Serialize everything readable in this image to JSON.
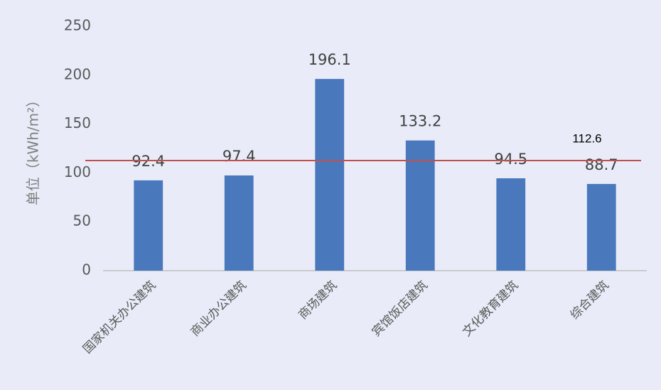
{
  "chart_data": {
    "type": "bar",
    "y_label": "单位（kWh/m²）",
    "categories": [
      "国家机关办公建筑",
      "商业办公建筑",
      "商场建筑",
      "宾馆饭店建筑",
      "文化教育建筑",
      "综合建筑"
    ],
    "values": [
      92.4,
      97.4,
      196.1,
      133.2,
      94.5,
      88.7
    ],
    "color": "#4a78bd",
    "ylim": [
      0,
      250
    ],
    "yticks": [
      0,
      50,
      100,
      150,
      200,
      250
    ],
    "grid": false,
    "reference_line": {
      "value": 112.6,
      "color": "#c0504d"
    }
  }
}
